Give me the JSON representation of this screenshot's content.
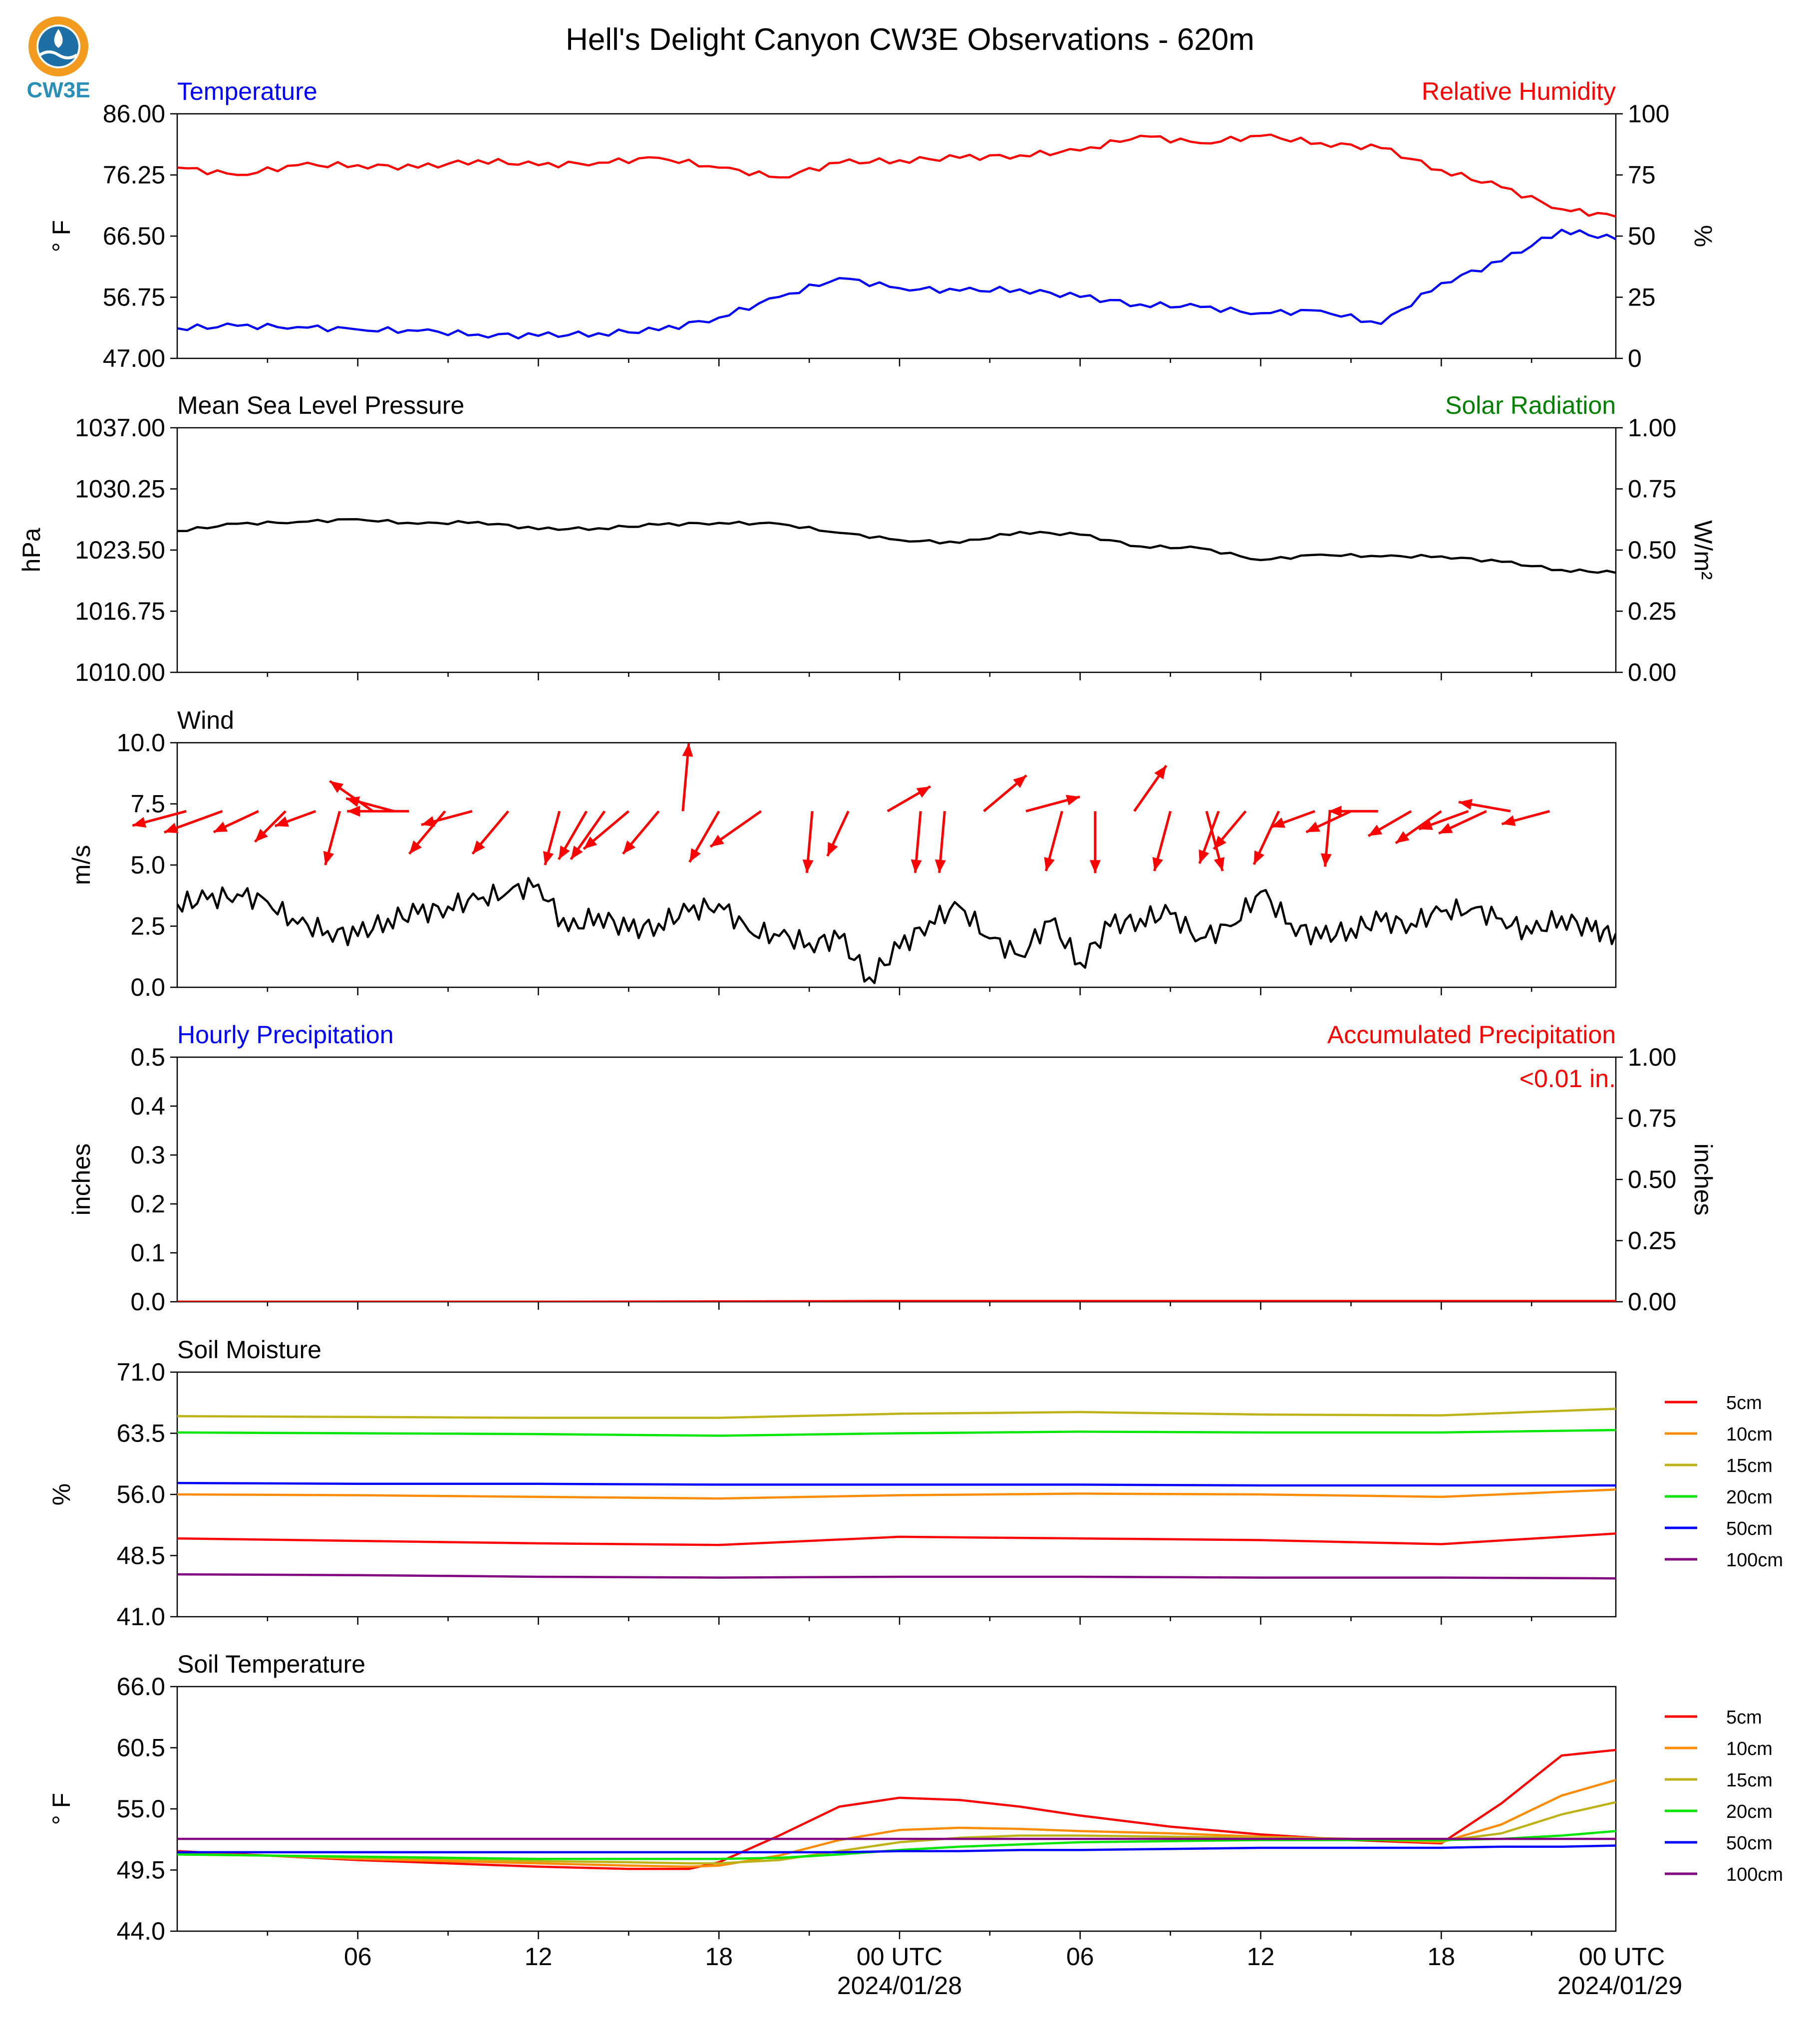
{
  "title": "Hell's Delight Canyon CW3E Observations - 620m",
  "logo": {
    "text": "CW3E",
    "ring_color": "#f29b1f",
    "wave_color": "#1d6fa5",
    "text_color": "#2a8fb8"
  },
  "x_axis": {
    "tick_labels": [
      "06",
      "12",
      "18",
      "00 UTC",
      "06",
      "12",
      "18",
      "00 UTC"
    ],
    "date_labels": [
      "2024/01/28",
      "2024/01/29"
    ]
  },
  "chart_data": [
    {
      "type": "line",
      "panel": "temperature-humidity",
      "title_left": "Temperature",
      "title_right": "Relative Humidity",
      "title_left_color": "#0000ff",
      "title_right_color": "#ff0000",
      "ylabel_left": "$^\\circ$F",
      "ylabel_left_display": "° F",
      "ylabel_right": "%",
      "ylim_left": [
        47.0,
        86.0
      ],
      "yticks_left": [
        "47.00",
        "56.75",
        "66.50",
        "76.25",
        "86.00"
      ],
      "ylim_right": [
        0,
        100
      ],
      "yticks_right": [
        "0",
        "25",
        "50",
        "75",
        "100"
      ],
      "x_hours": [
        0,
        2,
        4,
        6,
        8,
        10,
        12,
        14,
        16,
        18,
        20,
        22,
        24,
        26,
        28,
        30,
        32,
        34,
        36,
        38,
        40,
        42,
        44,
        46,
        47.8
      ],
      "series": [
        {
          "name": "Temperature",
          "axis": "left",
          "color": "#0000ff",
          "values": [
            51.8,
            52.2,
            52.0,
            51.6,
            51.4,
            50.8,
            50.6,
            51.0,
            51.5,
            53.5,
            56.8,
            59.8,
            58.2,
            57.8,
            58.0,
            56.8,
            55.6,
            55.2,
            54.2,
            54.6,
            52.5,
            59.0,
            62.5,
            67.5,
            66.0
          ]
        },
        {
          "name": "Relative Humidity",
          "axis": "right",
          "color": "#ff0000",
          "values": [
            78,
            75,
            79,
            79,
            78,
            81,
            79,
            80,
            82,
            78,
            74,
            80,
            81,
            82,
            83,
            85,
            91,
            88,
            91,
            88,
            86,
            77,
            70,
            61,
            58
          ]
        }
      ]
    },
    {
      "type": "line",
      "panel": "pressure-solar",
      "title_left": "Mean Sea Level Pressure",
      "title_right": "Solar Radiation",
      "title_left_color": "#000000",
      "title_right_color": "#008000",
      "ylabel_left": "hPa",
      "ylabel_right": "W/m²",
      "ylim_left": [
        1010.0,
        1037.0
      ],
      "yticks_left": [
        "1010.00",
        "1016.75",
        "1023.50",
        "1030.25",
        "1037.00"
      ],
      "ylim_right": [
        0.0,
        1.0
      ],
      "yticks_right": [
        "0.00",
        "0.25",
        "0.50",
        "0.75",
        "1.00"
      ],
      "x_hours": [
        0,
        2,
        4,
        6,
        8,
        10,
        12,
        14,
        16,
        18,
        20,
        22,
        24,
        26,
        28,
        30,
        32,
        34,
        36,
        38,
        40,
        42,
        44,
        46,
        47.8
      ],
      "series": [
        {
          "name": "Mean Sea Level Pressure",
          "axis": "left",
          "color": "#000000",
          "values": [
            1025.6,
            1026.4,
            1026.6,
            1026.9,
            1026.4,
            1026.6,
            1025.8,
            1025.9,
            1026.3,
            1026.5,
            1026.4,
            1025.4,
            1024.6,
            1024.3,
            1025.5,
            1025.2,
            1023.9,
            1023.7,
            1022.4,
            1023.0,
            1022.8,
            1022.8,
            1022.2,
            1021.3,
            1021.0
          ]
        }
      ]
    },
    {
      "type": "line",
      "panel": "wind",
      "title_left": "Wind",
      "ylabel_left": "m/s",
      "ylim_left": [
        0.0,
        10.0
      ],
      "yticks_left": [
        "0.0",
        "2.5",
        "5.0",
        "7.5",
        "10.0"
      ],
      "x_hours": [
        0,
        1,
        2,
        3,
        4,
        5,
        6,
        7,
        8,
        9,
        10,
        11,
        12,
        13,
        14,
        15,
        16,
        17,
        18,
        19,
        20,
        21,
        22,
        23,
        24,
        25,
        26,
        27,
        28,
        29,
        30,
        31,
        32,
        33,
        34,
        35,
        36,
        37,
        38,
        39,
        40,
        41,
        42,
        43,
        44,
        45,
        46,
        47,
        47.8
      ],
      "series": [
        {
          "name": "Wind speed",
          "color": "#000000",
          "values": [
            3.4,
            3.6,
            3.8,
            3.5,
            2.6,
            2.3,
            2.1,
            2.8,
            3.0,
            3.3,
            3.6,
            3.9,
            4.2,
            2.3,
            3.0,
            2.3,
            2.6,
            3.1,
            3.4,
            2.3,
            2.1,
            1.8,
            2.0,
            0.4,
            1.6,
            2.7,
            3.3,
            2.0,
            1.3,
            2.7,
            1.0,
            2.5,
            2.8,
            3.0,
            2.0,
            2.5,
            3.9,
            2.6,
            2.0,
            2.4,
            2.7,
            2.6,
            3.1,
            3.2,
            2.8,
            2.2,
            2.9,
            2.3,
            2.2
          ]
        }
      ],
      "wind_arrows": [
        {
          "hour": 0.3,
          "angle_deg": 195,
          "length_ms": 1.8
        },
        {
          "hour": 1.5,
          "angle_deg": 200,
          "length_ms": 2.0
        },
        {
          "hour": 2.7,
          "angle_deg": 205,
          "length_ms": 1.6
        },
        {
          "hour": 3.6,
          "angle_deg": 225,
          "length_ms": 1.4
        },
        {
          "hour": 4.6,
          "angle_deg": 200,
          "length_ms": 1.4
        },
        {
          "hour": 5.4,
          "angle_deg": 255,
          "length_ms": 1.8
        },
        {
          "hour": 6.5,
          "angle_deg": 145,
          "length_ms": 1.7
        },
        {
          "hour": 7.2,
          "angle_deg": 165,
          "length_ms": 1.6
        },
        {
          "hour": 7.7,
          "angle_deg": 180,
          "length_ms": 2.0
        },
        {
          "hour": 8.9,
          "angle_deg": 230,
          "length_ms": 1.8
        },
        {
          "hour": 9.8,
          "angle_deg": 195,
          "length_ms": 1.7
        },
        {
          "hour": 11.0,
          "angle_deg": 230,
          "length_ms": 1.8
        },
        {
          "hour": 12.7,
          "angle_deg": 255,
          "length_ms": 1.8
        },
        {
          "hour": 13.6,
          "angle_deg": 240,
          "length_ms": 1.8
        },
        {
          "hour": 14.2,
          "angle_deg": 235,
          "length_ms": 1.9
        },
        {
          "hour": 15.0,
          "angle_deg": 220,
          "length_ms": 1.9
        },
        {
          "hour": 16.0,
          "angle_deg": 230,
          "length_ms": 1.8
        },
        {
          "hour": 16.8,
          "angle_deg": 85,
          "length_ms": 2.2
        },
        {
          "hour": 18.0,
          "angle_deg": 240,
          "length_ms": 1.9
        },
        {
          "hour": 19.4,
          "angle_deg": 215,
          "length_ms": 2.0
        },
        {
          "hour": 21.1,
          "angle_deg": 265,
          "length_ms": 2.0
        },
        {
          "hour": 22.3,
          "angle_deg": 245,
          "length_ms": 1.6
        },
        {
          "hour": 23.6,
          "angle_deg": 30,
          "length_ms": 1.6
        },
        {
          "hour": 24.7,
          "angle_deg": 265,
          "length_ms": 2.0
        },
        {
          "hour": 25.5,
          "angle_deg": 265,
          "length_ms": 2.0
        },
        {
          "hour": 26.8,
          "angle_deg": 40,
          "length_ms": 1.8
        },
        {
          "hour": 28.2,
          "angle_deg": 15,
          "length_ms": 1.8
        },
        {
          "hour": 29.4,
          "angle_deg": 255,
          "length_ms": 2.0
        },
        {
          "hour": 30.5,
          "angle_deg": 270,
          "length_ms": 2.0
        },
        {
          "hour": 31.8,
          "angle_deg": 55,
          "length_ms": 1.8
        },
        {
          "hour": 33.0,
          "angle_deg": 255,
          "length_ms": 2.0
        },
        {
          "hour": 34.2,
          "angle_deg": 285,
          "length_ms": 2.0
        },
        {
          "hour": 34.6,
          "angle_deg": 250,
          "length_ms": 1.8
        },
        {
          "hour": 35.5,
          "angle_deg": 230,
          "length_ms": 1.6
        },
        {
          "hour": 36.6,
          "angle_deg": 245,
          "length_ms": 1.9
        },
        {
          "hour": 37.8,
          "angle_deg": 200,
          "length_ms": 1.5
        },
        {
          "hour": 38.3,
          "angle_deg": 265,
          "length_ms": 1.8
        },
        {
          "hour": 39.0,
          "angle_deg": 205,
          "length_ms": 1.6
        },
        {
          "hour": 39.9,
          "angle_deg": 180,
          "length_ms": 1.6
        },
        {
          "hour": 41.0,
          "angle_deg": 210,
          "length_ms": 1.6
        },
        {
          "hour": 42.0,
          "angle_deg": 215,
          "length_ms": 1.8
        },
        {
          "hour": 42.9,
          "angle_deg": 200,
          "length_ms": 1.7
        },
        {
          "hour": 43.5,
          "angle_deg": 205,
          "length_ms": 1.7
        },
        {
          "hour": 44.3,
          "angle_deg": 170,
          "length_ms": 1.7
        },
        {
          "hour": 45.6,
          "angle_deg": 195,
          "length_ms": 1.6
        }
      ]
    },
    {
      "type": "line",
      "panel": "precipitation",
      "title_left": "Hourly Precipitation",
      "title_right": "Accumulated Precipitation",
      "title_left_color": "#0000ff",
      "title_right_color": "#ff0000",
      "annotation": "<0.01 in.",
      "ylabel_left": "inches",
      "ylabel_right": "inches",
      "ylim_left": [
        0.0,
        0.5
      ],
      "yticks_left": [
        "0.0",
        "0.1",
        "0.2",
        "0.3",
        "0.4",
        "0.5"
      ],
      "ylim_right": [
        0.0,
        1.0
      ],
      "yticks_right": [
        "0.00",
        "0.25",
        "0.50",
        "0.75",
        "1.00"
      ],
      "x_hours": [
        0,
        12,
        24,
        36,
        47.8
      ],
      "series": [
        {
          "name": "Hourly Precipitation",
          "axis": "left",
          "color": "#000000",
          "values": [
            0,
            0,
            0,
            0,
            0
          ]
        },
        {
          "name": "Accumulated Precipitation",
          "axis": "right",
          "color": "#ff0000",
          "values": [
            0,
            0,
            0.003,
            0.003,
            0.003
          ]
        }
      ]
    },
    {
      "type": "line",
      "panel": "soil-moisture",
      "title_left": "Soil Moisture",
      "ylabel_left": "%",
      "ylim_left": [
        41.0,
        71.0
      ],
      "yticks_left": [
        "41.0",
        "48.5",
        "56.0",
        "63.5",
        "71.0"
      ],
      "legend_position": "right",
      "x_hours": [
        0,
        6,
        12,
        18,
        24,
        30,
        36,
        42,
        47.8
      ],
      "series": [
        {
          "name": "5cm",
          "color": "#ff0000",
          "values": [
            50.6,
            50.3,
            50.0,
            49.8,
            50.8,
            50.6,
            50.4,
            49.9,
            51.2
          ]
        },
        {
          "name": "10cm",
          "color": "#ff8c00",
          "values": [
            56.0,
            55.9,
            55.7,
            55.5,
            55.9,
            56.1,
            56.0,
            55.7,
            56.6
          ]
        },
        {
          "name": "15cm",
          "color": "#bdb319",
          "values": [
            65.6,
            65.5,
            65.4,
            65.4,
            65.9,
            66.1,
            65.8,
            65.7,
            66.5
          ]
        },
        {
          "name": "20cm",
          "color": "#00e600",
          "values": [
            63.6,
            63.5,
            63.4,
            63.2,
            63.5,
            63.7,
            63.6,
            63.6,
            63.9
          ]
        },
        {
          "name": "50cm",
          "color": "#0000ff",
          "values": [
            57.4,
            57.3,
            57.3,
            57.2,
            57.2,
            57.2,
            57.1,
            57.1,
            57.1
          ]
        },
        {
          "name": "100cm",
          "color": "#800080",
          "values": [
            46.2,
            46.1,
            45.9,
            45.8,
            45.9,
            45.9,
            45.8,
            45.8,
            45.7
          ]
        }
      ]
    },
    {
      "type": "line",
      "panel": "soil-temperature",
      "title_left": "Soil Temperature",
      "ylabel_left": "$^\\circ$F",
      "ylabel_left_display": "° F",
      "ylim_left": [
        44.0,
        66.0
      ],
      "yticks_left": [
        "44.0",
        "49.5",
        "55.0",
        "60.5",
        "66.0"
      ],
      "legend_position": "right",
      "x_hours": [
        0,
        3,
        6,
        9,
        12,
        15,
        17,
        18,
        20,
        22,
        24,
        26,
        28,
        30,
        33,
        36,
        39,
        42,
        44,
        46,
        47.8
      ],
      "series": [
        {
          "name": "5cm",
          "color": "#ff0000",
          "values": [
            51.2,
            50.8,
            50.4,
            50.1,
            49.8,
            49.6,
            49.6,
            50.2,
            52.6,
            55.2,
            56.0,
            55.8,
            55.2,
            54.4,
            53.4,
            52.7,
            52.2,
            51.9,
            55.5,
            59.8,
            60.3
          ]
        },
        {
          "name": "10cm",
          "color": "#ff8c00",
          "values": [
            51.0,
            50.8,
            50.5,
            50.3,
            50.1,
            49.9,
            49.8,
            49.9,
            50.8,
            52.2,
            53.1,
            53.3,
            53.2,
            53.0,
            52.8,
            52.5,
            52.3,
            52.0,
            53.6,
            56.2,
            57.6
          ]
        },
        {
          "name": "15cm",
          "color": "#bdb319",
          "values": [
            50.9,
            50.8,
            50.6,
            50.5,
            50.3,
            50.2,
            50.1,
            50.1,
            50.4,
            51.2,
            52.0,
            52.4,
            52.6,
            52.6,
            52.5,
            52.4,
            52.3,
            52.1,
            52.8,
            54.5,
            55.6
          ]
        },
        {
          "name": "20cm",
          "color": "#00e600",
          "values": [
            50.9,
            50.8,
            50.7,
            50.6,
            50.5,
            50.5,
            50.5,
            50.5,
            50.6,
            50.9,
            51.3,
            51.6,
            51.8,
            52.0,
            52.1,
            52.2,
            52.2,
            52.2,
            52.3,
            52.6,
            53.0
          ]
        },
        {
          "name": "50cm",
          "color": "#0000ff",
          "values": [
            51.1,
            51.1,
            51.1,
            51.1,
            51.1,
            51.1,
            51.1,
            51.1,
            51.1,
            51.1,
            51.2,
            51.2,
            51.3,
            51.3,
            51.4,
            51.5,
            51.5,
            51.5,
            51.6,
            51.6,
            51.7
          ]
        },
        {
          "name": "100cm",
          "color": "#800080",
          "values": [
            52.3,
            52.3,
            52.3,
            52.3,
            52.3,
            52.3,
            52.3,
            52.3,
            52.3,
            52.3,
            52.3,
            52.3,
            52.3,
            52.3,
            52.3,
            52.3,
            52.3,
            52.3,
            52.3,
            52.3,
            52.3
          ]
        }
      ]
    }
  ]
}
